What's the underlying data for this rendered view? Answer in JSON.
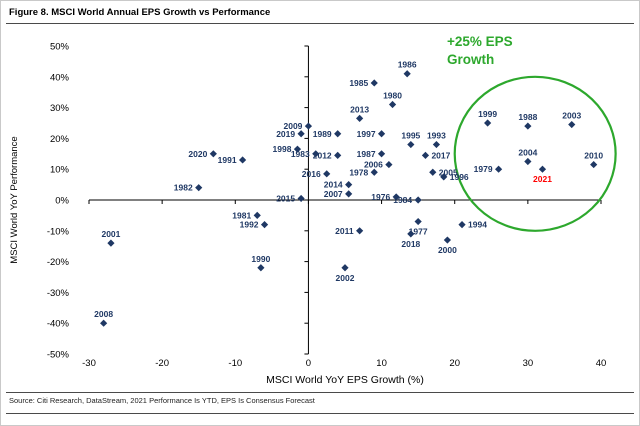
{
  "figure": {
    "title": "Figure 8. MSCI World Annual EPS Growth vs Performance",
    "source": "Source: Citi Research, DataStream, 2021 Performance Is YTD, EPS Is Consensus Forecast"
  },
  "chart_data": {
    "type": "scatter",
    "title": "Figure 8. MSCI World Annual EPS Growth vs Performance",
    "xlabel": "MSCI World YoY EPS Growth (%)",
    "ylabel": "MSCI World YoY Performance",
    "xlim": [
      -30,
      40
    ],
    "ylim": [
      -50,
      50
    ],
    "x_ticks": [
      -30,
      -20,
      -10,
      0,
      10,
      20,
      30,
      40
    ],
    "y_ticks": [
      50,
      40,
      30,
      20,
      10,
      0,
      -10,
      -20,
      -30,
      -40,
      -50
    ],
    "y_tick_suffix": "%",
    "grid": false,
    "legend": "none",
    "marker": {
      "shape": "diamond",
      "color": "#1F3864"
    },
    "highlight_label_color": "#FF0000",
    "annotation": {
      "lines": [
        "+25% EPS",
        "Growth"
      ],
      "color": "#2DA82D",
      "circle": {
        "cx": 31,
        "cy": 15,
        "rx_units": 11,
        "ry_units": 25
      }
    },
    "points": [
      {
        "year": "1976",
        "x": 12,
        "y": 1,
        "label_pos": "left"
      },
      {
        "year": "1977",
        "x": 15,
        "y": -7,
        "label_pos": "below"
      },
      {
        "year": "1978",
        "x": 9,
        "y": 9,
        "label_pos": "left"
      },
      {
        "year": "1979",
        "x": 26,
        "y": 10,
        "label_pos": "left"
      },
      {
        "year": "1980",
        "x": 11.5,
        "y": 31,
        "label_pos": "above"
      },
      {
        "year": "1981",
        "x": -7,
        "y": -5,
        "label_pos": "left"
      },
      {
        "year": "1982",
        "x": -15,
        "y": 4,
        "label_pos": "left"
      },
      {
        "year": "1983",
        "x": 1,
        "y": 15,
        "label_pos": "left"
      },
      {
        "year": "1984",
        "x": 15,
        "y": 0,
        "label_pos": "left"
      },
      {
        "year": "1985",
        "x": 9,
        "y": 38,
        "label_pos": "left"
      },
      {
        "year": "1986",
        "x": 13.5,
        "y": 41,
        "label_pos": "above"
      },
      {
        "year": "1987",
        "x": 10,
        "y": 15,
        "label_pos": "left"
      },
      {
        "year": "1988",
        "x": 30,
        "y": 24,
        "label_pos": "above"
      },
      {
        "year": "1989",
        "x": 4,
        "y": 21.5,
        "label_pos": "left"
      },
      {
        "year": "1990",
        "x": -6.5,
        "y": -22,
        "label_pos": "above"
      },
      {
        "year": "1991",
        "x": -9,
        "y": 13,
        "label_pos": "left"
      },
      {
        "year": "1992",
        "x": -6,
        "y": -8,
        "label_pos": "left"
      },
      {
        "year": "1993",
        "x": 17.5,
        "y": 18,
        "label_pos": "above"
      },
      {
        "year": "1994",
        "x": 21,
        "y": -8,
        "label_pos": "right"
      },
      {
        "year": "1995",
        "x": 14,
        "y": 18,
        "label_pos": "above"
      },
      {
        "year": "1996",
        "x": 18.5,
        "y": 7.5,
        "label_pos": "right"
      },
      {
        "year": "1997",
        "x": 10,
        "y": 21.5,
        "label_pos": "left"
      },
      {
        "year": "1998",
        "x": -1.5,
        "y": 16.5,
        "label_pos": "left"
      },
      {
        "year": "1999",
        "x": 24.5,
        "y": 25,
        "label_pos": "above"
      },
      {
        "year": "2000",
        "x": 19,
        "y": -13,
        "label_pos": "below"
      },
      {
        "year": "2001",
        "x": -27,
        "y": -14,
        "label_pos": "above"
      },
      {
        "year": "2002",
        "x": 5,
        "y": -22,
        "label_pos": "below"
      },
      {
        "year": "2003",
        "x": 36,
        "y": 24.5,
        "label_pos": "above"
      },
      {
        "year": "2004",
        "x": 30,
        "y": 12.5,
        "label_pos": "above"
      },
      {
        "year": "2005",
        "x": 17,
        "y": 9,
        "label_pos": "right"
      },
      {
        "year": "2006",
        "x": 11,
        "y": 11.5,
        "label_pos": "left"
      },
      {
        "year": "2007",
        "x": 5.5,
        "y": 2,
        "label_pos": "left"
      },
      {
        "year": "2008",
        "x": -28,
        "y": -40,
        "label_pos": "above"
      },
      {
        "year": "2009",
        "x": 0,
        "y": 24,
        "label_pos": "left"
      },
      {
        "year": "2010",
        "x": 39,
        "y": 11.5,
        "label_pos": "above"
      },
      {
        "year": "2011",
        "x": 7,
        "y": -10,
        "label_pos": "left"
      },
      {
        "year": "2012",
        "x": 4,
        "y": 14.5,
        "label_pos": "left"
      },
      {
        "year": "2013",
        "x": 7,
        "y": 26.5,
        "label_pos": "above"
      },
      {
        "year": "2014",
        "x": 5.5,
        "y": 5,
        "label_pos": "left"
      },
      {
        "year": "2015",
        "x": -1,
        "y": 0.5,
        "label_pos": "left"
      },
      {
        "year": "2016",
        "x": 2.5,
        "y": 8.5,
        "label_pos": "left"
      },
      {
        "year": "2017",
        "x": 16,
        "y": 14.5,
        "label_pos": "right"
      },
      {
        "year": "2018",
        "x": 14,
        "y": -11,
        "label_pos": "below"
      },
      {
        "year": "2019",
        "x": -1,
        "y": 21.5,
        "label_pos": "left"
      },
      {
        "year": "2020",
        "x": -13,
        "y": 15,
        "label_pos": "left"
      },
      {
        "year": "2021",
        "x": 32,
        "y": 10,
        "label_pos": "below",
        "label_color": "#FF0000"
      }
    ]
  }
}
